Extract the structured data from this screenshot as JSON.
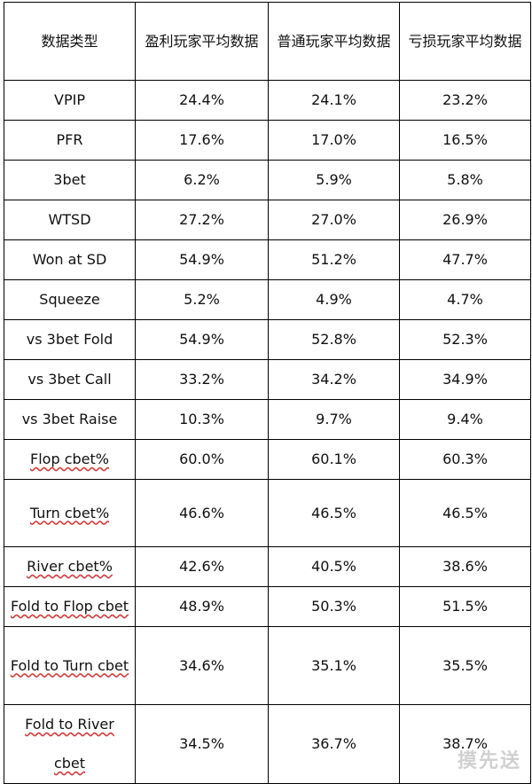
{
  "table": {
    "headers": [
      "数据类型",
      "盈利玩家平均数据",
      "普通玩家平均数据",
      "亏损玩家平均数据"
    ],
    "rows": [
      {
        "label": "VPIP",
        "values": [
          "24.4%",
          "24.1%",
          "23.2%"
        ]
      },
      {
        "label": "PFR",
        "values": [
          "17.6%",
          "17.0%",
          "16.5%"
        ]
      },
      {
        "label": "3bet",
        "values": [
          "6.2%",
          "5.9%",
          "5.8%"
        ]
      },
      {
        "label": "WTSD",
        "values": [
          "27.2%",
          "27.0%",
          "26.9%"
        ]
      },
      {
        "label": "Won at SD",
        "values": [
          "54.9%",
          "51.2%",
          "47.7%"
        ]
      },
      {
        "label": "Squeeze",
        "values": [
          "5.2%",
          "4.9%",
          "4.7%"
        ]
      },
      {
        "label": "vs 3bet Fold",
        "values": [
          "54.9%",
          "52.8%",
          "52.3%"
        ]
      },
      {
        "label": "vs 3bet Call",
        "values": [
          "33.2%",
          "34.2%",
          "34.9%"
        ]
      },
      {
        "label": "vs 3bet Raise",
        "values": [
          "10.3%",
          "9.7%",
          "9.4%"
        ]
      },
      {
        "label": "Flop cbet%",
        "values": [
          "60.0%",
          "60.1%",
          "60.3%"
        ]
      },
      {
        "label": "Turn cbet%",
        "values": [
          "46.6%",
          "46.5%",
          "46.5%"
        ]
      },
      {
        "label": "River cbet%",
        "values": [
          "42.6%",
          "40.5%",
          "38.6%"
        ]
      },
      {
        "label": "Fold to Flop cbet",
        "values": [
          "48.9%",
          "50.3%",
          "51.5%"
        ]
      },
      {
        "label": "Fold to Turn cbet",
        "values": [
          "34.6%",
          "35.1%",
          "35.5%"
        ]
      },
      {
        "label": "Fold to River cbet",
        "values": [
          "34.5%",
          "36.7%",
          "38.7%"
        ]
      }
    ]
  },
  "watermark": "摸先送"
}
